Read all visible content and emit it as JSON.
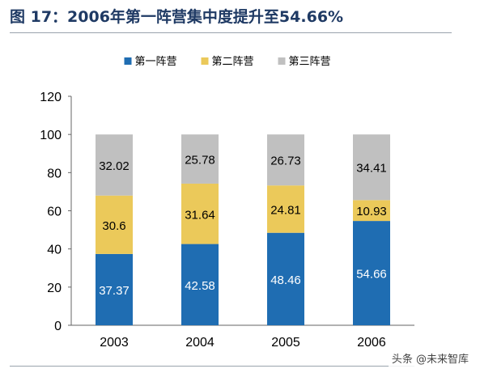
{
  "figure": {
    "title": "图 17：2006年第一阵营集中度提升至54.66%"
  },
  "watermark": "头条 @未来智库",
  "chart_data": {
    "type": "bar",
    "stacked": true,
    "categories": [
      "2003",
      "2004",
      "2005",
      "2006"
    ],
    "series": [
      {
        "name": "第一阵营",
        "color": "#1f6db2",
        "values": [
          37.37,
          42.58,
          48.46,
          54.66
        ]
      },
      {
        "name": "第二阵营",
        "color": "#ebc95a",
        "values": [
          30.6,
          31.64,
          24.81,
          10.93
        ]
      },
      {
        "name": "第三阵营",
        "color": "#c0c0c0",
        "values": [
          32.02,
          25.78,
          26.73,
          34.41
        ]
      }
    ],
    "ylim": [
      0,
      120
    ],
    "yticks": [
      0,
      20,
      40,
      60,
      80,
      100,
      120
    ],
    "legend": "top-center",
    "grid": false,
    "data_labels": true
  }
}
